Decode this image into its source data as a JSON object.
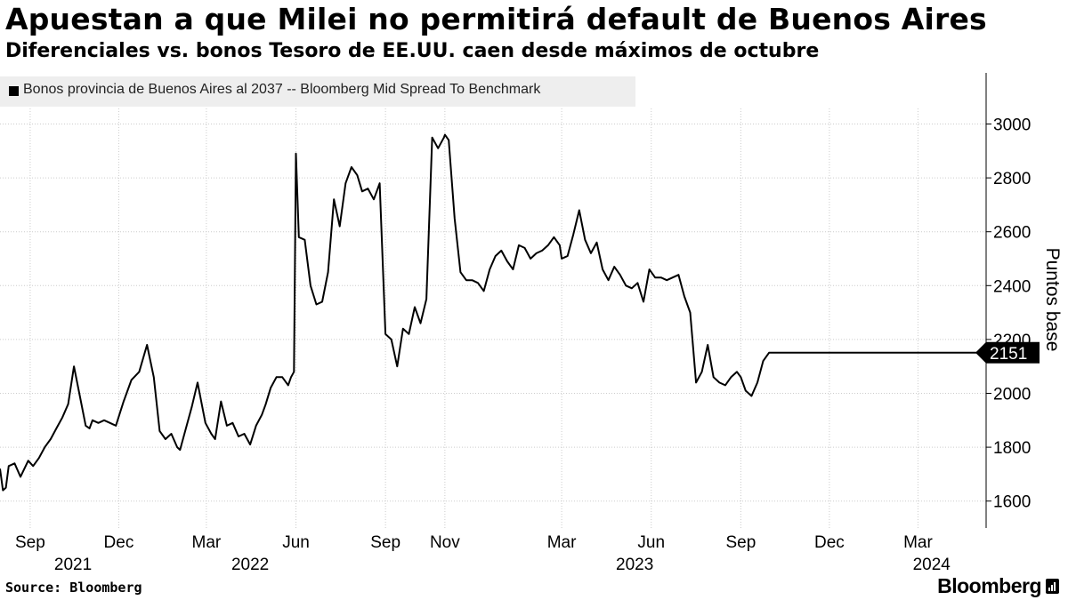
{
  "header": {
    "title": "Apuestan a que Milei no permitirá default de Buenos Aires",
    "subtitle": "Diferenciales vs. bonos Tesoro de EE.UU. caen desde máximos de octubre"
  },
  "footer": {
    "source": "Source: Bloomberg",
    "brand": "Bloomberg",
    "brand_icon": "bloomberg-terminal-icon"
  },
  "chart_data": {
    "type": "line",
    "title": "Apuestan a que Milei no permitirá default de Buenos Aires",
    "subtitle": "Diferenciales vs. bonos Tesoro de EE.UU. caen desde máximos de octubre",
    "ylabel": "Puntos base",
    "xlabel": "",
    "ylim": [
      1500,
      3170
    ],
    "xlim": [
      "2021-08-01",
      "2024-05-10"
    ],
    "grid": true,
    "legend_position": "top-left",
    "y_ticks": [
      1600,
      1800,
      2000,
      2200,
      2400,
      2600,
      2800,
      3000
    ],
    "x_month_ticks": [
      {
        "label": "Sep",
        "date": "2021-09-01"
      },
      {
        "label": "Dec",
        "date": "2021-12-01"
      },
      {
        "label": "Mar",
        "date": "2022-03-01"
      },
      {
        "label": "Jun",
        "date": "2022-06-01"
      },
      {
        "label": "Sep",
        "date": "2022-09-01"
      },
      {
        "label": "Nov",
        "date": "2022-11-01"
      },
      {
        "label": "Mar",
        "date": "2023-03-01"
      },
      {
        "label": "Jun",
        "date": "2023-06-01"
      },
      {
        "label": "Sep",
        "date": "2023-09-01"
      },
      {
        "label": "Dec",
        "date": "2023-12-01"
      },
      {
        "label": "Mar",
        "date": "2024-03-01"
      }
    ],
    "x_year_labels": [
      {
        "label": "2021",
        "date": "2021-10-15"
      },
      {
        "label": "2022",
        "date": "2022-04-15"
      },
      {
        "label": "2023",
        "date": "2023-05-15"
      },
      {
        "label": "2024",
        "date": "2024-03-15"
      }
    ],
    "last_value_label": "2151",
    "color": "#000000",
    "series": [
      {
        "name": "Bonos provincia de Buenos Aires al 2037 -- Bloomberg Mid Spread To Benchmark",
        "x": [
          "2021-08-01",
          "2021-08-04",
          "2021-08-07",
          "2021-08-10",
          "2021-08-16",
          "2021-08-22",
          "2021-08-30",
          "2021-09-04",
          "2021-09-10",
          "2021-09-16",
          "2021-09-22",
          "2021-09-28",
          "2021-10-04",
          "2021-10-10",
          "2021-10-16",
          "2021-10-22",
          "2021-10-28",
          "2021-11-01",
          "2021-11-04",
          "2021-11-10",
          "2021-11-16",
          "2021-11-22",
          "2021-11-28",
          "2021-12-06",
          "2021-12-14",
          "2021-12-22",
          "2021-12-30",
          "2022-01-06",
          "2022-01-12",
          "2022-01-18",
          "2022-01-24",
          "2022-01-30",
          "2022-02-02",
          "2022-02-08",
          "2022-02-14",
          "2022-02-20",
          "2022-02-28",
          "2022-03-06",
          "2022-03-10",
          "2022-03-16",
          "2022-03-22",
          "2022-03-28",
          "2022-04-03",
          "2022-04-09",
          "2022-04-15",
          "2022-04-21",
          "2022-04-27",
          "2022-05-01",
          "2022-05-06",
          "2022-05-12",
          "2022-05-18",
          "2022-05-24",
          "2022-05-27",
          "2022-05-30",
          "2022-06-01",
          "2022-06-04",
          "2022-06-10",
          "2022-06-16",
          "2022-06-22",
          "2022-06-28",
          "2022-07-04",
          "2022-07-10",
          "2022-07-16",
          "2022-07-22",
          "2022-07-28",
          "2022-08-03",
          "2022-08-08",
          "2022-08-14",
          "2022-08-20",
          "2022-08-26",
          "2022-09-01",
          "2022-09-07",
          "2022-09-13",
          "2022-09-19",
          "2022-09-25",
          "2022-10-01",
          "2022-10-07",
          "2022-10-13",
          "2022-10-19",
          "2022-10-25",
          "2022-10-31",
          "2022-11-01",
          "2022-11-05",
          "2022-11-11",
          "2022-11-17",
          "2022-11-23",
          "2022-11-29",
          "2022-12-05",
          "2022-12-11",
          "2022-12-17",
          "2022-12-23",
          "2022-12-29",
          "2023-01-04",
          "2023-01-10",
          "2023-01-16",
          "2023-01-22",
          "2023-01-28",
          "2023-02-03",
          "2023-02-09",
          "2023-02-15",
          "2023-02-21",
          "2023-02-27",
          "2023-03-01",
          "2023-03-07",
          "2023-03-13",
          "2023-03-19",
          "2023-03-25",
          "2023-03-31",
          "2023-04-06",
          "2023-04-12",
          "2023-04-18",
          "2023-04-24",
          "2023-04-30",
          "2023-05-06",
          "2023-05-12",
          "2023-05-18",
          "2023-05-24",
          "2023-05-30",
          "2023-06-05",
          "2023-06-11",
          "2023-06-17",
          "2023-06-23",
          "2023-06-29",
          "2023-07-05",
          "2023-07-11",
          "2023-07-17",
          "2023-07-23",
          "2023-07-29",
          "2023-08-04",
          "2023-08-10",
          "2023-08-16",
          "2023-08-22",
          "2023-08-28",
          "2023-09-01",
          "2023-09-06",
          "2023-09-12",
          "2023-09-18",
          "2023-09-24",
          "2023-09-30",
          "2023-10-06",
          "2023-10-12",
          "2023-10-18",
          "2023-10-24",
          "2023-10-30",
          "2023-11-05",
          "2023-11-11",
          "2023-11-17",
          "2023-11-23",
          "2023-11-29",
          "2023-12-05",
          "2023-12-11",
          "2023-12-17",
          "2023-12-23",
          "2023-12-29",
          "2024-01-04",
          "2024-01-10",
          "2024-01-16",
          "2024-01-22",
          "2024-01-28",
          "2024-02-03",
          "2024-02-09",
          "2024-02-15",
          "2024-02-21",
          "2024-02-27",
          "2024-03-01",
          "2024-03-05",
          "2024-03-11",
          "2024-03-17",
          "2024-03-23",
          "2024-03-29",
          "2024-04-04",
          "2024-04-10",
          "2024-04-16",
          "2024-04-22",
          "2024-04-28",
          "2024-05-01",
          "2024-05-04"
        ],
        "values": [
          1720,
          1640,
          1650,
          1730,
          1740,
          1690,
          1750,
          1730,
          1760,
          1800,
          1830,
          1870,
          1910,
          1960,
          2100,
          1990,
          1880,
          1870,
          1900,
          1890,
          1900,
          1890,
          1880,
          1970,
          2050,
          2080,
          2180,
          2060,
          1860,
          1830,
          1850,
          1800,
          1790,
          1870,
          1950,
          2040,
          1890,
          1850,
          1830,
          1970,
          1880,
          1890,
          1840,
          1850,
          1810,
          1880,
          1920,
          1960,
          2020,
          2060,
          2060,
          2030,
          2060,
          2080,
          2890,
          2580,
          2570,
          2400,
          2330,
          2340,
          2450,
          2720,
          2620,
          2780,
          2840,
          2810,
          2750,
          2760,
          2720,
          2780,
          2220,
          2200,
          2100,
          2240,
          2220,
          2320,
          2260,
          2350,
          2950,
          2910,
          2950,
          2960,
          2940,
          2650,
          2450,
          2420,
          2420,
          2410,
          2380,
          2460,
          2510,
          2530,
          2490,
          2460,
          2550,
          2540,
          2500,
          2520,
          2530,
          2550,
          2580,
          2550,
          2500,
          2510,
          2590,
          2680,
          2570,
          2520,
          2560,
          2460,
          2420,
          2470,
          2440,
          2400,
          2390,
          2410,
          2340,
          2460,
          2430,
          2430,
          2420,
          2430,
          2440,
          2360,
          2300,
          2040,
          2080,
          2180,
          2060,
          2040,
          2030,
          2060,
          2080,
          2060,
          2010,
          1990,
          2040,
          2120,
          2151,
          2151,
          2151,
          2151,
          2151,
          2151,
          2151,
          2151,
          2151,
          2151,
          2151,
          2151,
          2151,
          2151,
          2151,
          2151,
          2151,
          2151,
          2151,
          2151,
          2151,
          2151,
          2151,
          2151,
          2151,
          2151,
          2151,
          2151,
          2151,
          2151,
          2151,
          2151,
          2151,
          2151,
          2151,
          2151,
          2151,
          2151,
          2151
        ],
        "values_override_note": ""
      }
    ]
  }
}
